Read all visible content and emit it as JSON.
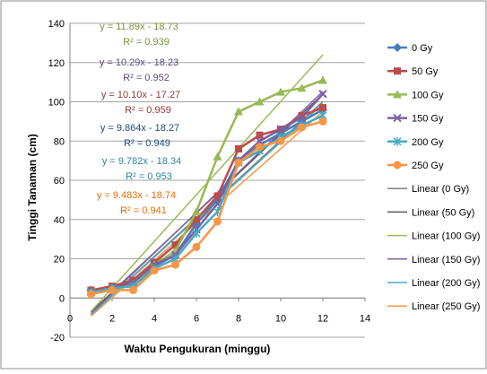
{
  "chart_data": {
    "type": "line",
    "xlabel": "Waktu Pengukuran (minggu)",
    "ylabel": "Tinggi Tanaman (cm)",
    "xlim": [
      0,
      14
    ],
    "ylim": [
      -20,
      140
    ],
    "x_ticks": [
      "0",
      "2",
      "4",
      "6",
      "8",
      "10",
      "12",
      "14"
    ],
    "y_ticks": [
      "-20",
      "0",
      "20",
      "40",
      "60",
      "80",
      "100",
      "120",
      "140"
    ],
    "grid": true,
    "legend_position": "right",
    "x": [
      1,
      2,
      3,
      4,
      5,
      6,
      7,
      8,
      9,
      10,
      11,
      12
    ],
    "series": [
      {
        "name": "0 Gy",
        "color": "#4a7ebb",
        "marker": "diamond",
        "values": [
          4,
          5,
          7,
          16,
          22,
          38,
          50,
          70,
          78,
          84,
          90,
          96
        ]
      },
      {
        "name": "50 Gy",
        "color": "#be4b48",
        "marker": "square",
        "values": [
          4,
          6,
          9,
          18,
          27,
          40,
          52,
          76,
          83,
          86,
          93,
          97
        ]
      },
      {
        "name": "100 Gy",
        "color": "#98b954",
        "marker": "triangle",
        "values": [
          3,
          5,
          7,
          17,
          24,
          44,
          72,
          95,
          100,
          105,
          107,
          111
        ]
      },
      {
        "name": "150 Gy",
        "color": "#7d60a0",
        "marker": "x",
        "values": [
          3,
          5,
          8,
          17,
          22,
          35,
          48,
          70,
          80,
          86,
          92,
          104
        ]
      },
      {
        "name": "200 Gy",
        "color": "#46aac5",
        "marker": "star",
        "values": [
          3,
          5,
          6,
          15,
          20,
          33,
          44,
          69,
          75,
          82,
          88,
          93
        ]
      },
      {
        "name": "250 Gy",
        "color": "#f79646",
        "marker": "circle",
        "values": [
          2,
          4,
          4,
          14,
          17,
          26,
          39,
          69,
          77,
          80,
          87,
          90
        ]
      }
    ],
    "trendlines": [
      {
        "name": "Linear (0 Gy)",
        "color": "#7f7f7f",
        "slope": 9.864,
        "intercept": -18.27
      },
      {
        "name": "Linear (50 Gy)",
        "color": "#595959",
        "slope": 10.1,
        "intercept": -17.27
      },
      {
        "name": "Linear (100 Gy)",
        "color": "#9bbb59",
        "slope": 11.89,
        "intercept": -18.73
      },
      {
        "name": "Linear (150 Gy)",
        "color": "#8064a2",
        "slope": 10.29,
        "intercept": -18.23
      },
      {
        "name": "Linear (200 Gy)",
        "color": "#4bacc6",
        "slope": 9.782,
        "intercept": -18.34
      },
      {
        "name": "Linear (250 Gy)",
        "color": "#f79646",
        "slope": 9.483,
        "intercept": -18.74
      }
    ],
    "annotations": [
      {
        "equation": "y = 11.89x - 18.73",
        "r2": "R² = 0.939",
        "color": "#77933c"
      },
      {
        "equation": "y = 10.29x - 18.23",
        "r2": "R² = 0.952",
        "color": "#604a7b"
      },
      {
        "equation": "y = 10.10x - 17.27",
        "r2": "R² = 0.959",
        "color": "#953735"
      },
      {
        "equation": "y = 9.864x - 18.27",
        "r2": "R² = 0.949",
        "color": "#1f497d"
      },
      {
        "equation": "y = 9.782x - 18.34",
        "r2": "R² = 0.953",
        "color": "#31859c"
      },
      {
        "equation": "y = 9.483x - 18.74",
        "r2": "R² = 0.941",
        "color": "#e46c0a"
      }
    ]
  }
}
